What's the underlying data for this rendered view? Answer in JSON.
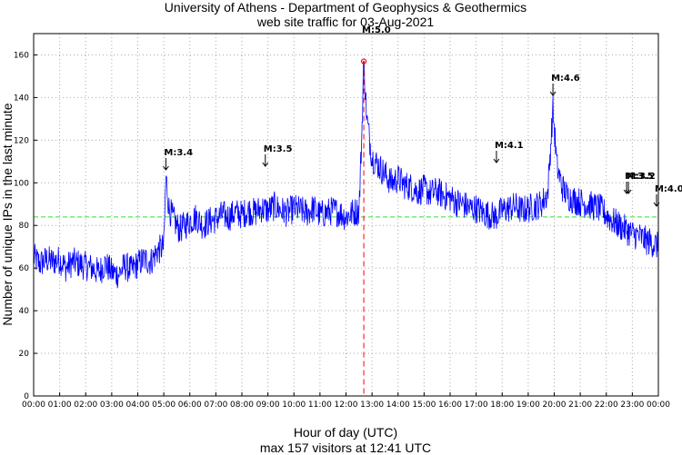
{
  "chart_data": {
    "type": "line",
    "title": "University of Athens - Department of Geophysics & Geothermics",
    "subtitle": "web site traffic for 03-Aug-2021",
    "xlabel": "Hour of day (UTC)",
    "footer": "max 157 visitors at 12:41 UTC",
    "ylabel": "Number of unique IPs in the last minute",
    "xlim": [
      0,
      24
    ],
    "ylim": [
      0,
      170
    ],
    "yticks": [
      0,
      20,
      40,
      60,
      80,
      100,
      120,
      140,
      160
    ],
    "xtick_labels": [
      "00:00",
      "01:00",
      "02:00",
      "03:00",
      "04:00",
      "05:00",
      "06:00",
      "07:00",
      "08:00",
      "09:00",
      "10:00",
      "11:00",
      "12:00",
      "13:00",
      "14:00",
      "15:00",
      "16:00",
      "17:00",
      "18:00",
      "19:00",
      "20:00",
      "21:00",
      "22:00",
      "23:00",
      "00:00"
    ],
    "grid": true,
    "mean_line": {
      "value": 84,
      "color": "#00cc00",
      "style": "dashed"
    },
    "max_marker": {
      "x": 12.683,
      "y": 157,
      "color": "#ff0000"
    },
    "series": [
      {
        "name": "traffic",
        "color": "#0000ff",
        "x": [
          0,
          0.25,
          0.5,
          0.75,
          1.0,
          1.25,
          1.5,
          1.75,
          2.0,
          2.25,
          2.5,
          2.75,
          3.0,
          3.25,
          3.5,
          3.75,
          4.0,
          4.25,
          4.5,
          4.75,
          5.0,
          5.08,
          5.2,
          5.4,
          5.6,
          5.8,
          6.0,
          6.25,
          6.5,
          6.75,
          7.0,
          7.25,
          7.5,
          7.75,
          8.0,
          8.25,
          8.5,
          8.75,
          9.0,
          9.25,
          9.5,
          9.75,
          10.0,
          10.25,
          10.5,
          10.75,
          11.0,
          11.25,
          11.5,
          11.75,
          12.0,
          12.25,
          12.5,
          12.6,
          12.683,
          12.8,
          13.0,
          13.25,
          13.5,
          13.75,
          14.0,
          14.25,
          14.5,
          14.75,
          15.0,
          15.25,
          15.5,
          15.75,
          16.0,
          16.25,
          16.5,
          16.75,
          17.0,
          17.25,
          17.5,
          17.75,
          18.0,
          18.25,
          18.5,
          18.75,
          19.0,
          19.25,
          19.5,
          19.75,
          19.95,
          20.1,
          20.3,
          20.5,
          20.75,
          21.0,
          21.25,
          21.5,
          21.75,
          22.0,
          22.25,
          22.5,
          22.75,
          23.0,
          23.25,
          23.5,
          23.75,
          24.0
        ],
        "values": [
          65,
          62,
          64,
          63,
          64,
          60,
          63,
          62,
          61,
          60,
          58,
          62,
          58,
          57,
          61,
          59,
          62,
          64,
          63,
          68,
          70,
          103,
          88,
          82,
          78,
          80,
          82,
          84,
          80,
          82,
          83,
          85,
          84,
          86,
          85,
          87,
          86,
          88,
          87,
          89,
          87,
          86,
          88,
          87,
          86,
          88,
          85,
          86,
          87,
          86,
          84,
          86,
          87,
          120,
          157,
          130,
          112,
          108,
          104,
          100,
          102,
          99,
          98,
          96,
          97,
          95,
          96,
          94,
          93,
          91,
          90,
          88,
          88,
          86,
          85,
          84,
          87,
          88,
          89,
          87,
          88,
          89,
          90,
          95,
          135,
          108,
          98,
          94,
          92,
          91,
          90,
          89,
          88,
          85,
          82,
          80,
          78,
          76,
          75,
          73,
          72,
          70
        ]
      }
    ],
    "annotations": [
      {
        "label": "M:3.4",
        "x": 5.08
      },
      {
        "label": "M:3.5",
        "x": 8.9
      },
      {
        "label": "M:5.0",
        "x": 12.683
      },
      {
        "label": "M:4.1",
        "x": 17.78
      },
      {
        "label": "M:4.6",
        "x": 19.95
      },
      {
        "label": "M:3.5",
        "x": 22.78
      },
      {
        "label": "M:3.2",
        "x": 22.85
      },
      {
        "label": "M:4.0",
        "x": 23.93
      }
    ]
  }
}
